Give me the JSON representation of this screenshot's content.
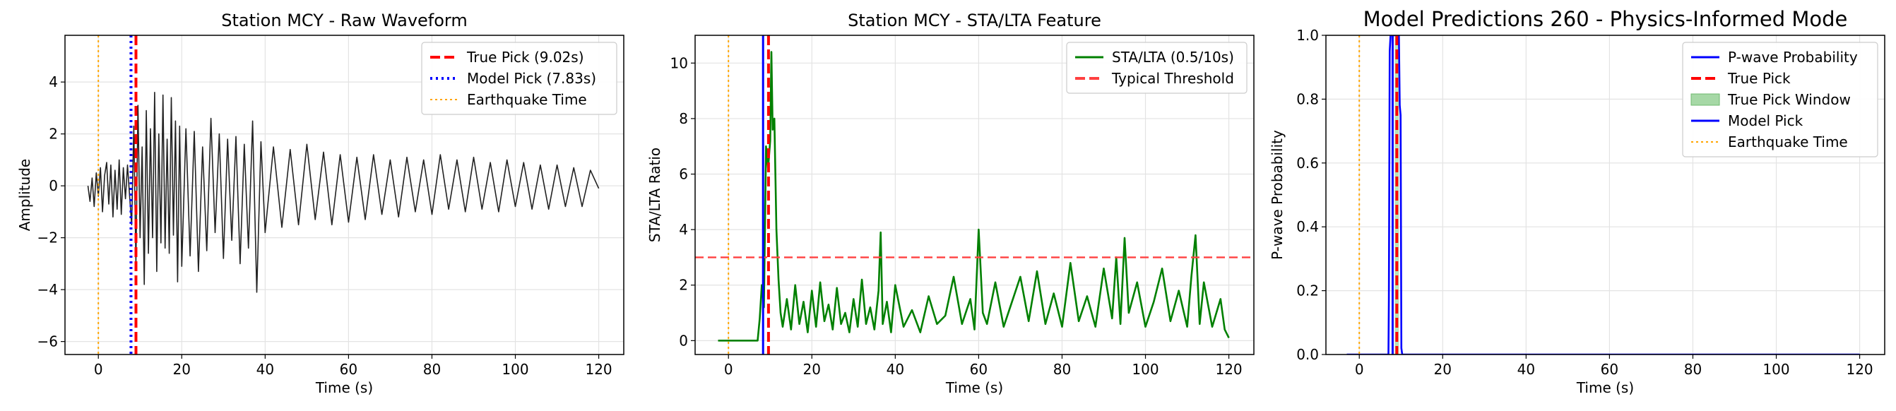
{
  "chart_data": [
    {
      "type": "line",
      "title": "Station MCY - Raw Waveform",
      "xlabel": "Time (s)",
      "ylabel": "Amplitude",
      "xlim": [
        -8,
        126
      ],
      "ylim": [
        -6.5,
        5.8
      ],
      "xticks": [
        0,
        20,
        40,
        60,
        80,
        100,
        120
      ],
      "yticks": [
        -6,
        -4,
        -2,
        0,
        2,
        4
      ],
      "grid": true,
      "legend_position": "top-right",
      "legend": [
        {
          "label": "True Pick (9.02s)",
          "color": "#ff0000",
          "style": "dashed"
        },
        {
          "label": "Model Pick (7.83s)",
          "color": "#0000ff",
          "style": "dotted"
        },
        {
          "label": "Earthquake Time",
          "color": "#ffa500",
          "style": "dotted-thin"
        }
      ],
      "series": [
        {
          "name": "waveform",
          "color": "#222222",
          "x": [
            -2.5,
            -2,
            -1.5,
            -1,
            -0.5,
            0,
            0.5,
            1,
            1.5,
            2,
            2.5,
            3,
            3.5,
            4,
            4.5,
            5,
            5.5,
            6,
            6.5,
            7,
            7.5,
            8,
            8.5,
            9,
            9.5,
            10,
            10.5,
            11,
            11.5,
            12,
            12.5,
            13,
            13.5,
            14,
            14.5,
            15,
            15.5,
            16,
            16.5,
            17,
            17.5,
            18,
            18.5,
            19,
            19.5,
            20,
            21,
            22,
            23,
            24,
            25,
            26,
            27,
            28,
            29,
            30,
            31,
            32,
            33,
            34,
            35,
            36,
            37,
            38,
            39,
            40,
            42,
            44,
            46,
            48,
            50,
            52,
            54,
            56,
            58,
            60,
            62,
            64,
            66,
            68,
            70,
            72,
            74,
            76,
            78,
            80,
            82,
            84,
            86,
            88,
            90,
            92,
            94,
            96,
            98,
            100,
            102,
            104,
            106,
            108,
            110,
            112,
            114,
            116,
            118,
            120
          ],
          "y": [
            0,
            -0.6,
            0.3,
            -0.8,
            0.5,
            -0.4,
            0.7,
            -1.0,
            0.4,
            0.9,
            -0.7,
            0.8,
            -1.2,
            0.6,
            -0.9,
            1.0,
            -1.1,
            0.7,
            -0.5,
            0.8,
            -0.4,
            -1.5,
            2.3,
            -3.0,
            3.1,
            -2.0,
            1.5,
            -3.8,
            2.9,
            -2.6,
            2.2,
            -2.0,
            3.6,
            -3.3,
            2.0,
            -2.2,
            3.5,
            -2.4,
            1.8,
            -2.6,
            3.4,
            -1.9,
            2.5,
            -3.7,
            2.3,
            -3.1,
            2.2,
            -2.7,
            2.1,
            -3.3,
            1.5,
            -2.5,
            2.6,
            -1.8,
            2.0,
            -2.8,
            1.8,
            -2.1,
            1.9,
            -3.0,
            1.6,
            -2.4,
            2.5,
            -4.1,
            1.7,
            -1.8,
            1.5,
            -1.6,
            1.4,
            -1.5,
            1.6,
            -1.3,
            1.3,
            -1.5,
            1.2,
            -1.4,
            1.1,
            -1.3,
            1.2,
            -1.1,
            1.0,
            -1.2,
            1.1,
            -1.0,
            1.0,
            -1.1,
            1.2,
            -0.9,
            1.0,
            -1.0,
            1.1,
            -0.9,
            0.9,
            -1.0,
            1.0,
            -0.8,
            0.9,
            -0.9,
            0.8,
            -0.9,
            0.8,
            -0.8,
            0.7,
            -0.8,
            0.6,
            -0.1
          ]
        }
      ],
      "vlines": [
        {
          "x": 9.02,
          "color": "#ff0000",
          "style": "dashed"
        },
        {
          "x": 7.83,
          "color": "#0000ff",
          "style": "dotted"
        },
        {
          "x": 0,
          "color": "#ffa500",
          "style": "dotted-thin"
        }
      ]
    },
    {
      "type": "line",
      "title": "Station MCY - STA/LTA Feature",
      "xlabel": "Time (s)",
      "ylabel": "STA/LTA Ratio",
      "xlim": [
        -8,
        126
      ],
      "ylim": [
        -0.5,
        11.0
      ],
      "xticks": [
        0,
        20,
        40,
        60,
        80,
        100,
        120
      ],
      "yticks": [
        0,
        2,
        4,
        6,
        8,
        10
      ],
      "grid": true,
      "legend_position": "top-right",
      "legend": [
        {
          "label": "STA/LTA (0.5/10s)",
          "color": "#008000",
          "style": "solid"
        },
        {
          "label": "Typical Threshold",
          "color": "#ff4040",
          "style": "dashed"
        }
      ],
      "series": [
        {
          "name": "STA/LTA (0.5/10s)",
          "color": "#008000",
          "x": [
            -2.5,
            7,
            7.5,
            8,
            8.5,
            9,
            9.5,
            10,
            10.3,
            10.6,
            11,
            11.5,
            12,
            12.5,
            13,
            14,
            15,
            16,
            17,
            18,
            19,
            20,
            21,
            22,
            23,
            24,
            25,
            26,
            27,
            28,
            29,
            30,
            31,
            32,
            33,
            34,
            35,
            36,
            36.5,
            37,
            38,
            39,
            40,
            42,
            44,
            46,
            48,
            50,
            52,
            54,
            56,
            58,
            59,
            60,
            61,
            62,
            64,
            66,
            68,
            70,
            72,
            74,
            76,
            78,
            80,
            82,
            84,
            86,
            88,
            90,
            92,
            93,
            94,
            95,
            96,
            98,
            100,
            102,
            104,
            106,
            108,
            110,
            111,
            112,
            113,
            114,
            116,
            118,
            119,
            120
          ],
          "y": [
            0,
            0,
            0.8,
            2.0,
            1.2,
            7.0,
            6.2,
            7.2,
            10.4,
            7.6,
            8.0,
            4.0,
            2.2,
            1.0,
            0.5,
            1.5,
            0.4,
            2.0,
            0.6,
            1.4,
            0.3,
            1.8,
            0.5,
            2.1,
            0.7,
            1.3,
            0.4,
            1.9,
            0.6,
            1.0,
            0.3,
            1.5,
            0.5,
            2.2,
            0.6,
            1.2,
            0.4,
            1.8,
            3.9,
            0.6,
            1.4,
            0.3,
            2.0,
            0.5,
            1.1,
            0.3,
            1.6,
            0.6,
            0.9,
            2.3,
            0.6,
            1.5,
            0.4,
            4.0,
            1.0,
            0.6,
            2.1,
            0.5,
            1.4,
            2.3,
            0.7,
            2.5,
            0.6,
            1.7,
            0.5,
            2.8,
            0.7,
            1.6,
            0.5,
            2.6,
            0.8,
            3.0,
            0.6,
            3.7,
            1.0,
            2.1,
            0.5,
            1.4,
            2.6,
            0.7,
            1.8,
            0.5,
            2.3,
            3.8,
            0.6,
            2.1,
            0.5,
            1.5,
            0.4,
            0.1
          ]
        }
      ],
      "hlines": [
        {
          "y": 3.0,
          "color": "#ff4040",
          "style": "dashed"
        }
      ],
      "vlines": [
        {
          "x": 0,
          "color": "#ffa500",
          "style": "dotted-thin"
        },
        {
          "x": 8.3,
          "color": "#0000ff",
          "style": "solid"
        },
        {
          "x": 9.6,
          "color": "#ff0000",
          "style": "dashed"
        }
      ]
    },
    {
      "type": "line",
      "title": "Model Predictions 260 - Physics-Informed Mode",
      "xlabel": "Time (s)",
      "ylabel": "P-wave Probability",
      "xlim": [
        -8,
        126
      ],
      "ylim": [
        0.0,
        1.0
      ],
      "xticks": [
        0,
        20,
        40,
        60,
        80,
        100,
        120
      ],
      "yticks": [
        0.0,
        0.2,
        0.4,
        0.6,
        0.8,
        1.0
      ],
      "grid": true,
      "legend_position": "top-right",
      "legend": [
        {
          "label": "P-wave Probability",
          "color": "#0000ff",
          "style": "solid"
        },
        {
          "label": "True Pick",
          "color": "#ff0000",
          "style": "dashed"
        },
        {
          "label": "True Pick Window",
          "color": "#a6d8a6",
          "style": "patch"
        },
        {
          "label": "Model Pick",
          "color": "#0000ff",
          "style": "solid"
        },
        {
          "label": "Earthquake Time",
          "color": "#ffa500",
          "style": "dotted-thin"
        }
      ],
      "series": [
        {
          "name": "P-wave Probability",
          "color": "#0000ff",
          "x": [
            -3,
            7.0,
            7.1,
            7.3,
            7.5,
            7.7,
            7.9,
            8.1,
            8.3,
            8.5,
            8.7,
            8.9,
            9.1,
            9.3,
            9.5,
            9.7,
            9.9,
            10.1,
            10.3,
            10.5,
            120
          ],
          "y": [
            0,
            0,
            0.17,
            0.95,
            1.0,
            1.0,
            1.0,
            1.0,
            1.0,
            1.0,
            1.0,
            1.0,
            1.0,
            1.0,
            1.0,
            0.78,
            0.75,
            0.02,
            0,
            0,
            0
          ]
        }
      ],
      "vspans": [
        {
          "x0": 8.5,
          "x1": 9.5,
          "color": "#a6d8a6"
        }
      ],
      "vlines": [
        {
          "x": 0,
          "color": "#ffa500",
          "style": "dotted-thin"
        },
        {
          "x": 8.0,
          "color": "#0000ff",
          "style": "solid"
        },
        {
          "x": 9.0,
          "color": "#ff0000",
          "style": "dashed"
        }
      ]
    }
  ]
}
